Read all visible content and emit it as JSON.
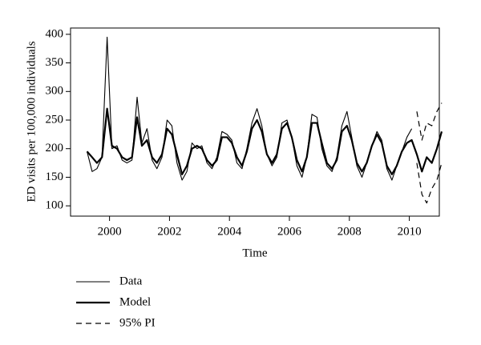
{
  "chart_data": {
    "type": "line",
    "xlabel": "Time",
    "ylabel": "ED visits per 100,000 individuals",
    "x": [
      1999.25,
      1999.42,
      1999.58,
      1999.75,
      1999.92,
      2000.08,
      2000.25,
      2000.42,
      2000.58,
      2000.75,
      2000.92,
      2001.08,
      2001.25,
      2001.42,
      2001.58,
      2001.75,
      2001.92,
      2002.08,
      2002.25,
      2002.42,
      2002.58,
      2002.75,
      2002.92,
      2003.08,
      2003.25,
      2003.42,
      2003.58,
      2003.75,
      2003.92,
      2004.08,
      2004.25,
      2004.42,
      2004.58,
      2004.75,
      2004.92,
      2005.08,
      2005.25,
      2005.42,
      2005.58,
      2005.75,
      2005.92,
      2006.08,
      2006.25,
      2006.42,
      2006.58,
      2006.75,
      2006.92,
      2007.08,
      2007.25,
      2007.42,
      2007.58,
      2007.75,
      2007.92,
      2008.08,
      2008.25,
      2008.42,
      2008.58,
      2008.75,
      2008.92,
      2009.08,
      2009.25,
      2009.42,
      2009.58,
      2009.75,
      2009.92,
      2010.08,
      2010.25,
      2010.42,
      2010.58,
      2010.75,
      2010.92,
      2011.08
    ],
    "series": [
      {
        "name": "Data",
        "color": "#000000",
        "line_width": 1.1,
        "line_style": "solid",
        "values": [
          195,
          160,
          165,
          185,
          395,
          200,
          205,
          180,
          175,
          180,
          290,
          210,
          235,
          180,
          165,
          185,
          250,
          240,
          175,
          145,
          160,
          210,
          200,
          205,
          175,
          165,
          185,
          230,
          225,
          215,
          175,
          165,
          200,
          245,
          270,
          240,
          190,
          170,
          185,
          245,
          250,
          220,
          170,
          150,
          185,
          260,
          255,
          200,
          170,
          160,
          185,
          240,
          265,
          220,
          170,
          150,
          175,
          205,
          230,
          215,
          165,
          145,
          170,
          195,
          220,
          235,
          null,
          null,
          null,
          null,
          null,
          null
        ]
      },
      {
        "name": "Model",
        "color": "#000000",
        "line_width": 2.2,
        "line_style": "solid",
        "values": [
          195,
          185,
          175,
          185,
          270,
          205,
          200,
          185,
          180,
          185,
          255,
          205,
          215,
          185,
          175,
          190,
          235,
          225,
          190,
          155,
          170,
          200,
          205,
          200,
          180,
          170,
          180,
          220,
          220,
          210,
          185,
          170,
          195,
          235,
          250,
          230,
          190,
          175,
          190,
          235,
          245,
          220,
          180,
          160,
          185,
          245,
          245,
          210,
          175,
          165,
          180,
          230,
          240,
          215,
          175,
          160,
          175,
          205,
          225,
          210,
          170,
          155,
          170,
          195,
          210,
          215,
          190,
          160,
          185,
          175,
          200,
          230
        ]
      },
      {
        "name": "95% PI",
        "color": "#000000",
        "line_width": 1.2,
        "line_style": "dashed",
        "upper": [
          null,
          null,
          null,
          null,
          null,
          null,
          null,
          null,
          null,
          null,
          null,
          null,
          null,
          null,
          null,
          null,
          null,
          null,
          null,
          null,
          null,
          null,
          null,
          null,
          null,
          null,
          null,
          null,
          null,
          null,
          null,
          null,
          null,
          null,
          null,
          null,
          null,
          null,
          null,
          null,
          null,
          null,
          null,
          null,
          null,
          null,
          null,
          null,
          null,
          null,
          null,
          null,
          null,
          null,
          null,
          null,
          null,
          null,
          null,
          null,
          null,
          null,
          null,
          null,
          null,
          null,
          265,
          215,
          245,
          240,
          265,
          280
        ],
        "lower": [
          null,
          null,
          null,
          null,
          null,
          null,
          null,
          null,
          null,
          null,
          null,
          null,
          null,
          null,
          null,
          null,
          null,
          null,
          null,
          null,
          null,
          null,
          null,
          null,
          null,
          null,
          null,
          null,
          null,
          null,
          null,
          null,
          null,
          null,
          null,
          null,
          null,
          null,
          null,
          null,
          null,
          null,
          null,
          null,
          null,
          null,
          null,
          null,
          null,
          null,
          null,
          null,
          null,
          null,
          null,
          null,
          null,
          null,
          null,
          null,
          null,
          null,
          null,
          null,
          null,
          null,
          175,
          120,
          105,
          130,
          145,
          175
        ]
      }
    ],
    "xlim": [
      1998.7,
      2011.0
    ],
    "ylim": [
      82,
      411
    ],
    "xticks": [
      2000,
      2002,
      2004,
      2006,
      2008,
      2010
    ],
    "yticks": [
      100,
      150,
      200,
      250,
      300,
      350,
      400
    ],
    "legend": "bottom-left"
  }
}
